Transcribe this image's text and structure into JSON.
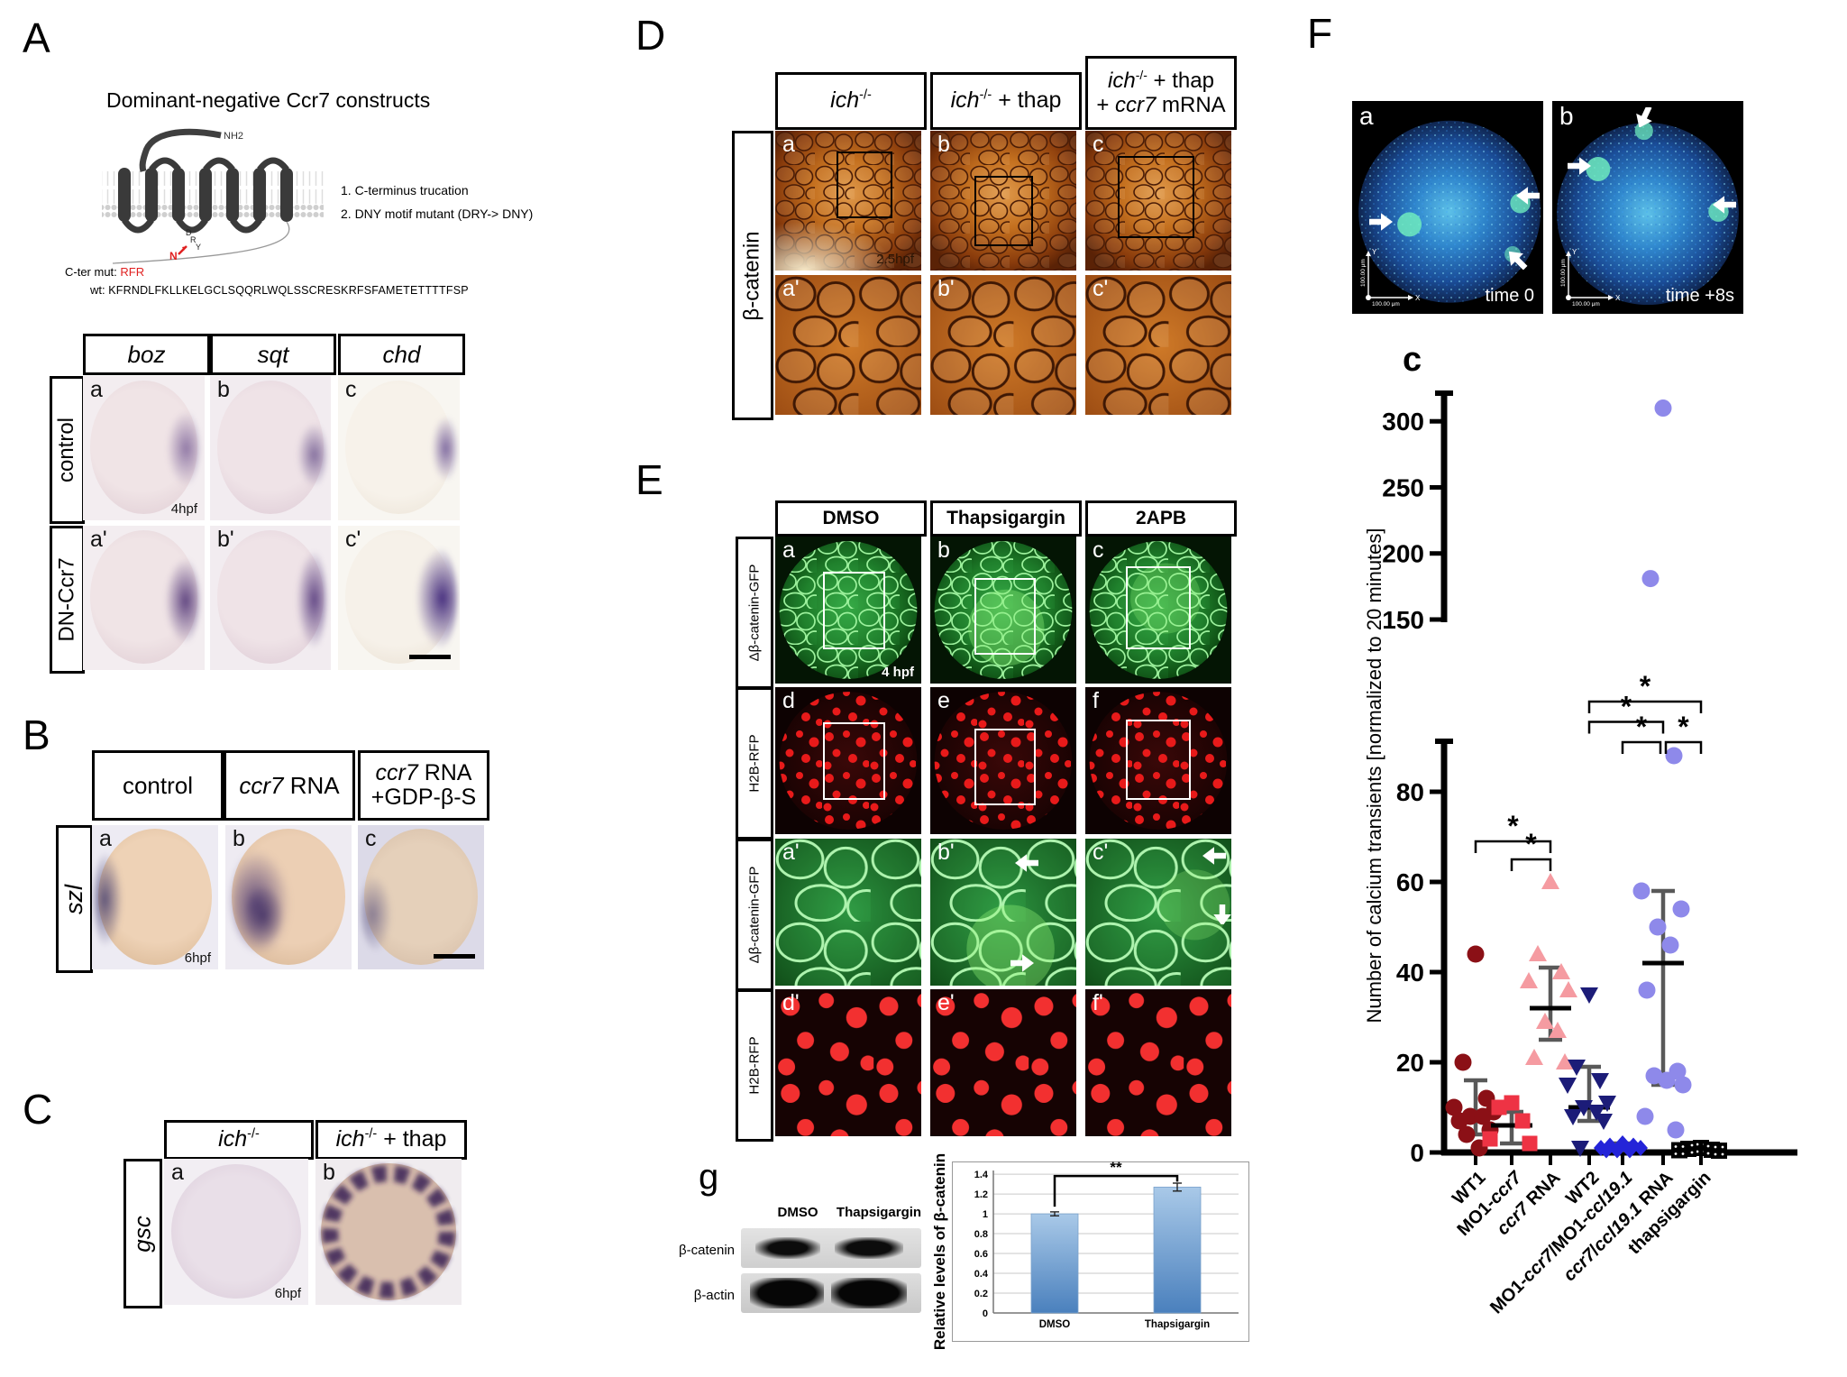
{
  "chart_data": [
    {
      "type": "bar",
      "title": "",
      "ylabel": "Relative levels of β-catenin",
      "categories": [
        "DMSO",
        "Thapsigargin"
      ],
      "values": [
        1.0,
        1.27
      ],
      "errors": [
        0.02,
        0.04
      ],
      "yticks": [
        0,
        0.2,
        0.4,
        0.6,
        0.8,
        1,
        1.2,
        1.4
      ],
      "ylim": [
        0,
        1.45
      ],
      "significance": "**",
      "grid": true,
      "legend": "none",
      "bar_color_top": "#a9c9e8",
      "bar_color_bottom": "#4a80bd"
    },
    {
      "type": "scatter",
      "title": "",
      "ylabel": "Number of calcium transients [normalized to 20 minutes]",
      "axis_break": true,
      "upper_ticks": [
        150,
        200,
        250,
        300
      ],
      "lower_ticks": [
        0,
        20,
        40,
        60,
        80
      ],
      "upper_range": [
        150,
        320
      ],
      "lower_range": [
        0,
        91
      ],
      "groups": [
        {
          "name": "WT1",
          "marker": "circle",
          "color": "#8b1016",
          "values": [
            44,
            20,
            12,
            10,
            9,
            8,
            8,
            7,
            5,
            4,
            1
          ],
          "mean": 8,
          "err_low": 4,
          "err_high": 16
        },
        {
          "name": "MO1-ccr7",
          "marker": "square",
          "color": "#ee3344",
          "values": [
            11,
            10,
            7,
            3,
            2
          ],
          "mean": 6,
          "err_low": 2,
          "err_high": 9
        },
        {
          "name": "ccr7 RNA",
          "marker": "triangle-up",
          "color": "#f59ba1",
          "values": [
            60,
            44,
            40,
            38,
            36,
            29,
            27,
            21,
            20
          ],
          "mean": 32,
          "err_low": 25,
          "err_high": 41
        },
        {
          "name": "WT2",
          "marker": "triangle-down",
          "color": "#1c1c78",
          "values": [
            35,
            19,
            16,
            15,
            11,
            10,
            9,
            8,
            7,
            1
          ],
          "mean": 10,
          "err_low": 7,
          "err_high": 19
        },
        {
          "name": "MO1-ccr7/MO1-ccl19.1",
          "marker": "diamond",
          "color": "#2424d8",
          "values": [
            2,
            1.5,
            1.5,
            1,
            1,
            0.5,
            0.5,
            0.5
          ],
          "mean": 1,
          "err_low": 0.5,
          "err_high": 2
        },
        {
          "name": "ccr7/ccl19.1 RNA",
          "marker": "circle",
          "color": "#8e89ea",
          "values": [
            310,
            181,
            88,
            58,
            54,
            50,
            46,
            36,
            18,
            17,
            16,
            15,
            8,
            5
          ],
          "mean": 42,
          "err_low": 15,
          "err_high": 58
        },
        {
          "name": "thapsigargin",
          "marker": "square-pattern",
          "color": "#000000",
          "values": [
            1,
            0.8,
            0.6,
            0.5,
            0.4
          ],
          "mean": 0.6,
          "err_low": null,
          "err_high": null
        }
      ],
      "significance": [
        {
          "a": 0,
          "b": 2,
          "y": 69,
          "label": "*"
        },
        {
          "a": 1,
          "b": 2,
          "y": 65,
          "label": "*"
        },
        {
          "a": 3,
          "b": 6,
          "y": 100,
          "label": "*"
        },
        {
          "a": 3,
          "b": 5,
          "y": 95.5,
          "label": "*"
        },
        {
          "a": 4,
          "b": 5,
          "y": 91,
          "label": "*",
          "x2o": -3
        },
        {
          "a": 5,
          "b": 6,
          "y": 91,
          "label": "*",
          "x1o": 3
        }
      ]
    }
  ],
  "panels": {
    "A": {
      "label": "A",
      "title": "Dominant-negative Ccr7 constructs",
      "note1": "1. C-terminus trucation",
      "note2": "2. DNY motif mutant (DRY-> DNY)",
      "nh2": "NH2",
      "dry_d": "D",
      "dry_r": "R",
      "dry_y": "Y",
      "n_label": "N",
      "cter_label": "C-ter mut:",
      "cter_value": "RFR",
      "wt_label": "wt:",
      "wt_seq": "KFRNDLFKLLKELGCLSQQRLWQLSSCRESKRFSFAMETETTTTFSP",
      "cols": [
        "boz",
        "sqt",
        "chd"
      ],
      "rows": [
        "control",
        "DN-Ccr7"
      ],
      "tiles": [
        "a",
        "b",
        "c",
        "a'",
        "b'",
        "c'"
      ],
      "hpf": "4hpf"
    },
    "B": {
      "label": "B",
      "col1": "control",
      "col2_italic": "ccr7",
      "col2_rest": " RNA",
      "col3_italic": "ccr7",
      "col3_rest": " RNA",
      "col3_line2": "+GDP-β-S",
      "row": "szl",
      "tiles": [
        "a",
        "b",
        "c"
      ],
      "hpf": "6hpf"
    },
    "C": {
      "label": "C",
      "col1_italic": "ich",
      "col1_sup": "-/-",
      "col2_italic": "ich",
      "col2_sup": "-/-",
      "col2_rest": " + thap",
      "row": "gsc",
      "tiles": [
        "a",
        "b"
      ],
      "hpf": "6hpf"
    },
    "D": {
      "label": "D",
      "col1_italic": "ich",
      "col1_sup": "-/-",
      "col2_italic": "ich",
      "col2_sup": "-/-",
      "col2_rest": " + thap",
      "col3_italic": "ich",
      "col3_sup": "-/-",
      "col3_rest": " + thap",
      "col3_line2_pre": "+ ",
      "col3_line2_italic": "ccr7",
      "col3_line2_rest": " mRNA",
      "row": "β-catenin",
      "tiles": [
        "a",
        "b",
        "c",
        "a'",
        "b'",
        "c'"
      ],
      "hpf": "2.5hpf"
    },
    "E": {
      "label": "E",
      "cols": [
        "DMSO",
        "Thapsigargin",
        "2APB"
      ],
      "rows": [
        "Δβ-catenin-GFP",
        "H2B-RFP",
        "Δβ-catenin-GFP",
        "H2B-RFP"
      ],
      "tiles_r1": [
        "a",
        "b",
        "c"
      ],
      "tiles_r2": [
        "d",
        "e",
        "f"
      ],
      "tiles_r3": [
        "a'",
        "b'",
        "c'"
      ],
      "tiles_r4": [
        "d'",
        "e'",
        "f'"
      ],
      "hpf": "4 hpf"
    },
    "G": {
      "label": "g",
      "lanes": [
        "DMSO",
        "Thapsigargin"
      ],
      "blot_rows": [
        "β-catenin",
        "β-actin"
      ]
    },
    "F": {
      "label": "F",
      "img_a_label": "a",
      "img_b_label": "b",
      "time_a": "time 0",
      "time_b": "time +8s",
      "scale_text": "100.00 μm",
      "axis_x": "X",
      "axis_y": "Y",
      "plot_label": "c"
    }
  }
}
